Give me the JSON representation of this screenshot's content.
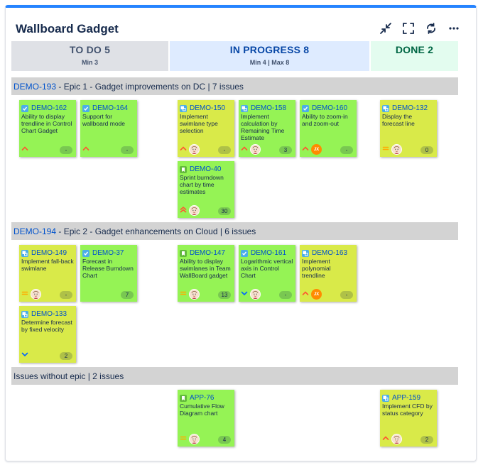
{
  "gadget": {
    "title": "Wallboard Gadget"
  },
  "toolbar": {
    "icons": [
      "minimize-icon",
      "fullscreen-icon",
      "refresh-icon",
      "more-icon"
    ]
  },
  "columns": [
    {
      "name": "TO DO 5",
      "limit": "Min 3"
    },
    {
      "name": "IN PROGRESS 8",
      "limit": "Min 4 | Max 8"
    },
    {
      "name": "DONE 2",
      "limit": ""
    }
  ],
  "swimlanes": [
    {
      "key": "DEMO-193",
      "text": " - Epic 1 - Gadget improvements on DC | 7 issues"
    },
    {
      "key": "DEMO-194",
      "text": " - Epic 2 - Gadget enhancements on Cloud | 6 issues"
    },
    {
      "key": "",
      "text": "Issues without epic | 2 issues"
    }
  ],
  "cards": [
    {
      "key": "DEMO-162",
      "summary": "Ability to display trendline in Control Chart Gadget",
      "type": "task",
      "priority": "high",
      "assignee": "",
      "estimate": "-",
      "color": "green"
    },
    {
      "key": "DEMO-164",
      "summary": "Support for wallboard mode",
      "type": "task",
      "priority": "high",
      "assignee": "",
      "estimate": "-",
      "color": "green"
    },
    {
      "key": "DEMO-150",
      "summary": "Implement swimlane type selection",
      "type": "subtask",
      "priority": "high",
      "assignee": "photo",
      "estimate": "-",
      "color": "yellow"
    },
    {
      "key": "DEMO-158",
      "summary": "Implement calculation by Remaining Time Estimate",
      "type": "subtask",
      "priority": "high",
      "assignee": "photo",
      "estimate": "3",
      "color": "green"
    },
    {
      "key": "DEMO-160",
      "summary": "Ability to zoom-in and zoom-out",
      "type": "task",
      "priority": "high",
      "assignee": "JX",
      "estimate": "-",
      "color": "green"
    },
    {
      "key": "DEMO-132",
      "summary": "Display the forecast line",
      "type": "subtask",
      "priority": "medium",
      "assignee": "photo",
      "estimate": "0",
      "color": "yellow"
    },
    {
      "key": "DEMO-40",
      "summary": "Sprint burndown chart by time estimates",
      "type": "story",
      "priority": "highest",
      "assignee": "photo",
      "estimate": "30",
      "color": "green"
    },
    {
      "key": "DEMO-149",
      "summary": "Implement fall-back swimlane",
      "type": "subtask",
      "priority": "medium",
      "assignee": "photo",
      "estimate": "-",
      "color": "yellow"
    },
    {
      "key": "DEMO-37",
      "summary": "Forecast in Release Burndown Chart",
      "type": "task",
      "priority": "",
      "assignee": "",
      "estimate": "7",
      "color": "green"
    },
    {
      "key": "DEMO-147",
      "summary": "Ability to display swimlanes in Team WallBoard gadget",
      "type": "story",
      "priority": "medium",
      "assignee": "photo",
      "estimate": "13",
      "color": "green"
    },
    {
      "key": "DEMO-161",
      "summary": "Logarithmic vertical axis in Control Chart",
      "type": "task",
      "priority": "low",
      "assignee": "photo",
      "estimate": "-",
      "color": "green"
    },
    {
      "key": "DEMO-163",
      "summary": "Implement polynomial trendline",
      "type": "subtask",
      "priority": "high",
      "assignee": "JX",
      "estimate": "-",
      "color": "yellow"
    },
    {
      "key": "DEMO-133",
      "summary": "Determine forecast by fixed velocity",
      "type": "subtask",
      "priority": "low",
      "assignee": "",
      "estimate": "2",
      "color": "yellow"
    },
    {
      "key": "APP-76",
      "summary": "Cumulative Flow Diagram chart",
      "type": "story",
      "priority": "medium",
      "assignee": "photo",
      "estimate": "4",
      "color": "green"
    },
    {
      "key": "APP-159",
      "summary": "Implement CFD by status category",
      "type": "subtask",
      "priority": "high",
      "assignee": "photo",
      "estimate": "2",
      "color": "yellow"
    }
  ],
  "colors": {
    "card_green": "#95f355",
    "card_yellow": "#d9ea49",
    "accent": "#2684ff",
    "link": "#0052cc"
  }
}
